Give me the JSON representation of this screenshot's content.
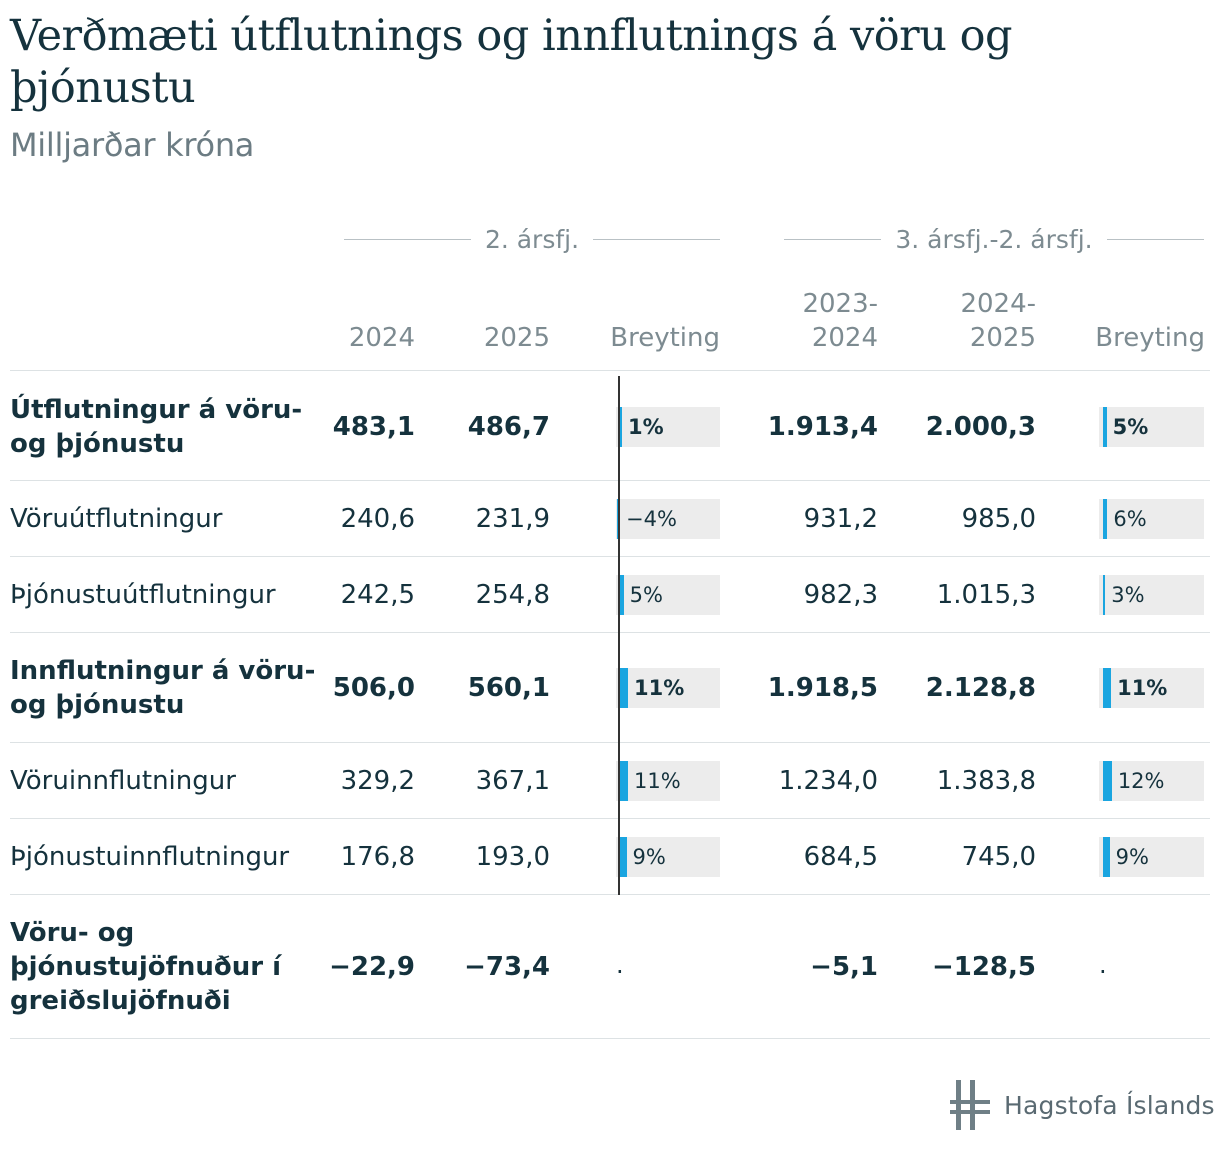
{
  "title": "Verðmæti útflutnings og innflutnings á vöru og þjónustu",
  "subtitle": "Milljarðar króna",
  "groups": {
    "q2": "2. ársfj.",
    "rolling": "3. ársfj.-2. ársfj."
  },
  "columns": {
    "c2024": "2024",
    "c2025": "2025",
    "change1": "Breyting",
    "r1a": "2023-",
    "r1b": "2024",
    "r2a": "2024-",
    "r2b": "2025",
    "change2": "Breyting"
  },
  "rows": [
    {
      "l1": "Útflutningur á vöru-",
      "l2": "og þjónustu",
      "v2024": "483,1",
      "v2025": "486,7",
      "ch1": "1%",
      "r1": "1.913,4",
      "r2": "2.000,3",
      "ch2": "5%"
    },
    {
      "l1": "Vöruútflutningur",
      "v2024": "240,6",
      "v2025": "231,9",
      "ch1": "−4%",
      "r1": "931,2",
      "r2": "985,0",
      "ch2": "6%"
    },
    {
      "l1": "Þjónustuútflutningur",
      "v2024": "242,5",
      "v2025": "254,8",
      "ch1": "5%",
      "r1": "982,3",
      "r2": "1.015,3",
      "ch2": "3%"
    },
    {
      "l1": "Innflutningur á vöru-",
      "l2": "og þjónustu",
      "v2024": "506,0",
      "v2025": "560,1",
      "ch1": "11%",
      "r1": "1.918,5",
      "r2": "2.128,8",
      "ch2": "11%"
    },
    {
      "l1": "Vöruinnflutningur",
      "v2024": "329,2",
      "v2025": "367,1",
      "ch1": "11%",
      "r1": "1.234,0",
      "r2": "1.383,8",
      "ch2": "12%"
    },
    {
      "l1": "Þjónustuinnflutningur",
      "v2024": "176,8",
      "v2025": "193,0",
      "ch1": "9%",
      "r1": "684,5",
      "r2": "745,0",
      "ch2": "9%"
    },
    {
      "l1": "Vöru- og",
      "l2": "þjónustujöfnuður í",
      "l3": "greiðslujöfnuði",
      "v2024": "−22,9",
      "v2025": "−73,4",
      "ch1": ".",
      "r1": "−5,1",
      "r2": "−128,5",
      "ch2": "."
    }
  ],
  "chart_data": {
    "type": "table",
    "title": "Verðmæti útflutnings og innflutnings á vöru og þjónustu",
    "subtitle": "Milljarðar króna",
    "categories": [
      "Útflutningur á vöru- og þjónustu",
      "Vöruútflutningur",
      "Þjónustuútflutningur",
      "Innflutningur á vöru- og þjónustu",
      "Vöruinnflutningur",
      "Þjónustuinnflutningur",
      "Vöru- og þjónustujöfnuður í greiðslujöfnuði"
    ],
    "series": [
      {
        "name": "2. ársfj. 2024",
        "values": [
          483.1,
          240.6,
          242.5,
          506.0,
          329.2,
          176.8,
          -22.9
        ]
      },
      {
        "name": "2. ársfj. 2025",
        "values": [
          486.7,
          231.9,
          254.8,
          560.1,
          367.1,
          193.0,
          -73.4
        ]
      },
      {
        "name": "2. ársfj. Breyting (%)",
        "values": [
          1,
          -4,
          5,
          11,
          11,
          9,
          null
        ]
      },
      {
        "name": "3. ársfj.-2. ársfj. 2023-2024",
        "values": [
          1913.4,
          931.2,
          982.3,
          1918.5,
          1234.0,
          684.5,
          -5.1
        ]
      },
      {
        "name": "3. ársfj.-2. ársfj. 2024-2025",
        "values": [
          2000.3,
          985.0,
          1015.3,
          2128.8,
          1383.8,
          745.0,
          -128.5
        ]
      },
      {
        "name": "3. ársfj.-2. ársfj. Breyting (%)",
        "values": [
          5,
          6,
          3,
          11,
          12,
          9,
          null
        ]
      }
    ],
    "bar_scale_max_pct": 15
  },
  "logo": {
    "text": "Hagstofa Íslands",
    "icon": "hagstofa-logo-icon"
  }
}
